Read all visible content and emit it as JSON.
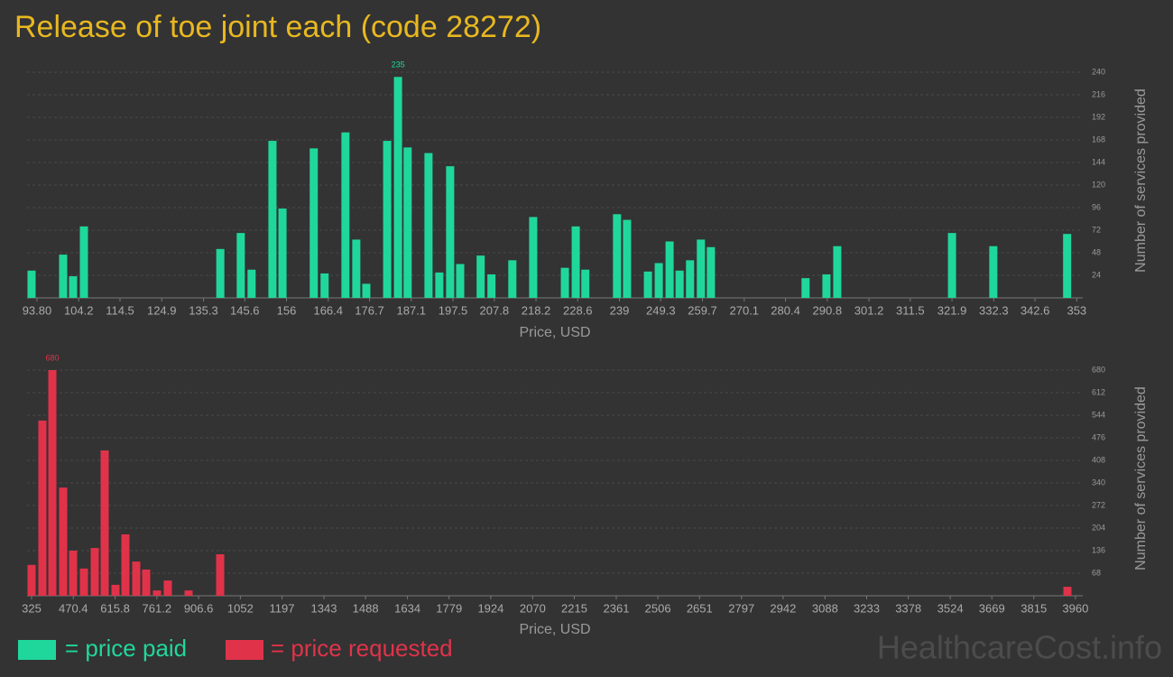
{
  "title": "Release of toe joint each (code 28272)",
  "watermark": "HealthcareCost.info",
  "chart_data": [
    {
      "type": "bar",
      "x": [
        92.45,
        100.32,
        102.8,
        105.5,
        139.5,
        144.6,
        147.3,
        152.5,
        155.0,
        162.8,
        165.5,
        170.7,
        173.4,
        175.9,
        181.1,
        183.8,
        186.2,
        191.4,
        194.1,
        196.8,
        199.3,
        204.4,
        207.1,
        212.3,
        217.5,
        225.4,
        228.1,
        230.5,
        238.4,
        240.9,
        246.1,
        248.8,
        251.5,
        254.0,
        256.6,
        259.3,
        261.8,
        285.4,
        290.6,
        293.3,
        321.9,
        332.2,
        350.6
      ],
      "series": [
        {
          "name": "= price paid",
          "color": "#20d79b",
          "values": [
            29,
            46,
            23,
            76,
            52,
            69,
            30,
            167,
            95,
            159,
            26,
            176,
            62,
            15,
            167,
            235,
            160,
            154,
            27,
            140,
            36,
            45,
            25,
            40,
            86,
            32,
            76,
            30,
            89,
            83,
            28,
            37,
            60,
            29,
            40,
            62,
            54,
            21,
            25,
            55,
            69,
            55,
            68
          ]
        }
      ],
      "xlabel": "Price, USD",
      "ylabel": "Number of services provided",
      "xlim": [
        91.33,
        354.5
      ],
      "ylim": [
        0,
        240
      ],
      "xticks": [
        {
          "value": 93.8,
          "label": "93.80"
        },
        104.2,
        114.5,
        124.9,
        135.3,
        145.6,
        156,
        166.4,
        176.7,
        187.1,
        197.5,
        207.8,
        218.2,
        228.6,
        239,
        249.3,
        259.7,
        270.1,
        280.4,
        290.8,
        301.2,
        311.5,
        321.9,
        332.3,
        342.6,
        353
      ],
      "yticks": [
        24,
        48,
        72,
        96,
        120,
        144,
        168,
        192,
        216,
        240
      ],
      "grid": true
    },
    {
      "type": "bar",
      "x": [
        325,
        362.7,
        397.3,
        435.0,
        469.5,
        507.2,
        544.9,
        579.5,
        617.2,
        651.8,
        689.5,
        724.0,
        761.7,
        799.4,
        871.7,
        981.7,
        3932
      ],
      "series": [
        {
          "name": "= price requested",
          "color": "#e0334a",
          "values": [
            93,
            528,
            680,
            326,
            136,
            82,
            144,
            438,
            33,
            185,
            103,
            79,
            16,
            46,
            16,
            125,
            27
          ]
        }
      ],
      "xlabel": "Price, USD",
      "ylabel": "Number of services provided",
      "xlim": [
        309.3,
        3985.5
      ],
      "ylim": [
        0,
        680
      ],
      "xticks": [
        325,
        470.4,
        615.8,
        761.2,
        906.6,
        1052,
        1197,
        1343,
        1488,
        1634,
        1779,
        1924,
        2070,
        2215,
        2361,
        2506,
        2651,
        2797,
        2942,
        3088,
        3233,
        3378,
        3524,
        3669,
        3815,
        3960
      ],
      "yticks": [
        68,
        136,
        204,
        272,
        340,
        408,
        476,
        544,
        612,
        680
      ],
      "grid": true
    }
  ]
}
